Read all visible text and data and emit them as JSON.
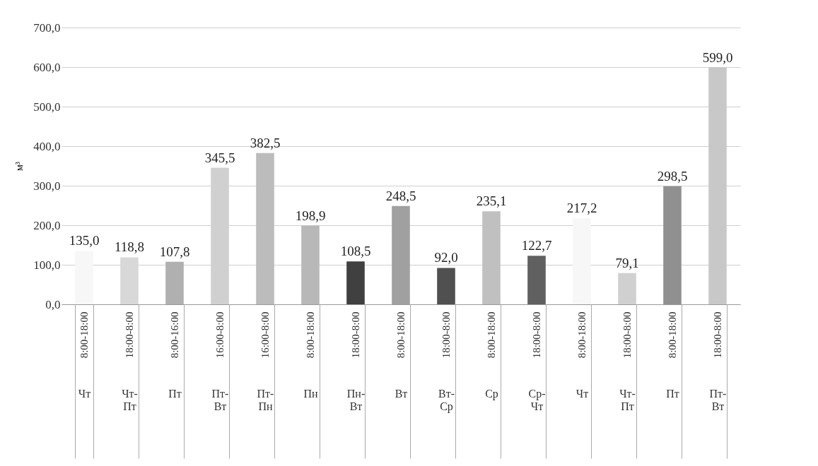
{
  "chart_data": {
    "type": "bar",
    "ylabel": "м³",
    "categories": [
      "8:00-18:00 Чт",
      "18:00-8:00 Чт-Пт",
      "8:00-16:00 Пт",
      "16:00-8:00 Пт-Вт",
      "16:00-8:00 Пт-Пн",
      "8:00-18:00 Пн",
      "18:00-8:00 Пн-Вт",
      "8:00-18:00 Вт",
      "18:00-8:00 Вт-Ср",
      "8:00-18:00 Ср",
      "18:00-8:00 Ср-Чт",
      "8:00-18:00 Чт",
      "18:00-8:00 Чт-Пт",
      "8:00-18:00 Пт",
      "18:00-8:00 Пт-Вт"
    ],
    "values": [
      135.0,
      118.8,
      107.8,
      345.5,
      382.5,
      198.9,
      108.5,
      248.5,
      92.0,
      235.1,
      122.7,
      217.2,
      79.1,
      298.5,
      599.0
    ],
    "value_labels": [
      "135,0",
      "118,8",
      "107,8",
      "345,5",
      "382,5",
      "198,9",
      "108,5",
      "248,5",
      "92,0",
      "235,1",
      "122,7",
      "217,2",
      "79,1",
      "298,5",
      "599,0"
    ],
    "colors": [
      "#f7f7f7",
      "#d8d8d8",
      "#b0b0b0",
      "#d0d0d0",
      "#bcbcbc",
      "#b8b8b8",
      "#404040",
      "#a0a0a0",
      "#505050",
      "#c0c0c0",
      "#606060",
      "#f7f7f7",
      "#d0d0d0",
      "#909090",
      "#c8c8c8"
    ],
    "ylim": [
      0,
      700
    ],
    "yticks": [
      {
        "value": 0,
        "label": "0,0"
      },
      {
        "value": 100,
        "label": "100,0"
      },
      {
        "value": 200,
        "label": "200,0"
      },
      {
        "value": 300,
        "label": "300,0"
      },
      {
        "value": 400,
        "label": "400,0"
      },
      {
        "value": 500,
        "label": "500,0"
      },
      {
        "value": 600,
        "label": "600,0"
      },
      {
        "value": 700,
        "label": "700,0"
      }
    ],
    "grid": "y"
  }
}
